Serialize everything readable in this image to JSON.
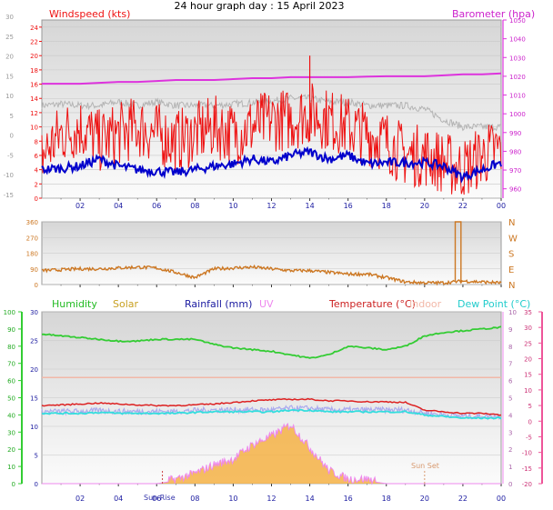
{
  "title": "24 hour graph day : 15 April 2023",
  "x_ticks": [
    "02",
    "04",
    "06",
    "08",
    "10",
    "12",
    "14",
    "16",
    "18",
    "20",
    "22",
    "00"
  ],
  "colors": {
    "wind": "#ee1111",
    "windavg": "#0000cc",
    "baro": "#dd33dd",
    "gust": "#b4b4b4",
    "dir": "#cc7722",
    "humidity": "#33cc33",
    "solar": "#f5b245",
    "rain": "#1a1aa0",
    "uv": "#ee88ee",
    "temp": "#dd2222",
    "indoor": "#f2b8a8",
    "dew": "#33dddd",
    "plot_bg_top": "#d8d8d8",
    "plot_bg_bottom": "#fafafa",
    "grid": "#c8c8c8"
  },
  "chart_data": [
    {
      "type": "line",
      "title": "",
      "legend": {
        "left": "Windspeed (kts)",
        "right": "Barometer (hpa)"
      },
      "left_axis": {
        "ticks": [
          "0",
          "2",
          "4",
          "6",
          "8",
          "10",
          "12",
          "14",
          "16",
          "18",
          "20",
          "22",
          "24"
        ],
        "ylim": [
          0,
          25
        ]
      },
      "left_outer_axis": {
        "ticks": [
          "-15",
          "-10",
          "-5",
          "0",
          "5",
          "10",
          "15",
          "20",
          "25",
          "30"
        ]
      },
      "right_axis": {
        "ticks": [
          "960",
          "970",
          "980",
          "990",
          "1000",
          "1010",
          "1020",
          "1030",
          "1040",
          "1050"
        ],
        "ylim": [
          955,
          1050
        ]
      },
      "x": [
        0,
        1,
        2,
        3,
        4,
        5,
        6,
        7,
        8,
        9,
        10,
        11,
        12,
        13,
        14,
        15,
        16,
        17,
        18,
        19,
        20,
        21,
        22,
        23,
        24
      ],
      "series": [
        {
          "name": "Windspeed (kts)",
          "values": [
            6,
            9,
            10,
            8,
            9,
            10,
            9,
            8,
            9,
            10,
            9,
            10,
            11,
            11,
            12,
            11,
            10,
            9,
            8,
            6,
            6,
            5,
            4,
            6,
            7
          ]
        },
        {
          "name": "Barometer (hpa)",
          "values": [
            1016,
            1016,
            1016,
            1016.5,
            1017,
            1017,
            1017.5,
            1018,
            1018,
            1018,
            1018.5,
            1019,
            1019,
            1019.5,
            1019.5,
            1019.5,
            1019.5,
            1019.8,
            1020,
            1020,
            1020,
            1020.5,
            1021,
            1021,
            1021.5
          ]
        },
        {
          "values": [
            4,
            4.2,
            4.5,
            5.5,
            4.5,
            4,
            3.8,
            3.6,
            4,
            4.5,
            4.8,
            5.5,
            5,
            6,
            6.5,
            5.5,
            6,
            4.8,
            5,
            5,
            5,
            4.5,
            3,
            4,
            5
          ]
        },
        {
          "values": [
            13,
            13.2,
            13,
            13,
            13.5,
            13,
            13.5,
            13,
            13,
            13,
            13.2,
            13.4,
            13.6,
            14,
            14,
            13.5,
            13.5,
            13,
            13,
            13,
            12.5,
            11,
            10,
            10,
            10
          ]
        }
      ],
      "spike": {
        "x": 14,
        "value": 20
      }
    },
    {
      "type": "line",
      "title": "",
      "left_axis": {
        "ticks": [
          "0",
          "90",
          "180",
          "270",
          "360"
        ],
        "ylim": [
          0,
          360
        ]
      },
      "right_labels": [
        "N",
        "W",
        "S",
        "E",
        "N"
      ],
      "x": [
        0,
        1,
        2,
        3,
        4,
        5,
        6,
        7,
        8,
        9,
        10,
        11,
        12,
        13,
        14,
        15,
        16,
        17,
        18,
        19,
        20,
        21,
        22,
        23,
        24
      ],
      "series": [
        {
          "values": [
            80,
            85,
            90,
            90,
            95,
            100,
            95,
            70,
            40,
            90,
            95,
            100,
            90,
            80,
            80,
            70,
            60,
            60,
            40,
            15,
            10,
            10,
            20,
            15,
            10
          ]
        }
      ],
      "spike": {
        "x_start": 21.6,
        "x_end": 21.9,
        "value": 360
      }
    },
    {
      "type": "line",
      "title": "",
      "legend": [
        "Humidity",
        "Solar",
        "Rainfall (mm)",
        "UV",
        "Temperature (°C)",
        "Indoor",
        "Dew Point (°C)"
      ],
      "humidity_axis": {
        "ticks": [
          "0",
          "10",
          "20",
          "30",
          "40",
          "50",
          "60",
          "70",
          "80",
          "90",
          "100"
        ],
        "ylim": [
          0,
          100
        ]
      },
      "left_axis": {
        "ticks": [
          "0",
          "5",
          "10",
          "15",
          "20",
          "25",
          "30"
        ],
        "ylim": [
          0,
          30
        ]
      },
      "uv_axis": {
        "ticks": [
          "0",
          "1",
          "2",
          "3",
          "4",
          "5",
          "6",
          "7",
          "8",
          "9",
          "10"
        ]
      },
      "temp_axis": {
        "ticks": [
          "-20",
          "-15",
          "-10",
          "-5",
          "0",
          "5",
          "10",
          "15",
          "20",
          "25",
          "30",
          "35"
        ],
        "ylim": [
          -20,
          35
        ]
      },
      "x": [
        0,
        1,
        2,
        3,
        4,
        5,
        6,
        7,
        8,
        9,
        10,
        11,
        12,
        13,
        14,
        15,
        16,
        17,
        18,
        19,
        20,
        21,
        22,
        23,
        24
      ],
      "series": [
        {
          "name": "Humidity",
          "values": [
            87,
            86,
            85,
            84,
            83,
            83,
            84,
            84,
            84,
            81,
            79,
            78,
            77,
            75,
            73,
            75,
            80,
            79,
            78,
            80,
            86,
            88,
            89,
            90,
            91
          ]
        },
        {
          "name": "Temperature (°C)",
          "values": [
            5,
            5.2,
            5.5,
            5.8,
            5.5,
            5.2,
            5,
            5,
            5.2,
            5.5,
            6,
            6.5,
            6.8,
            7,
            7,
            6.5,
            6.5,
            6.2,
            6.2,
            6,
            3.5,
            3,
            2.5,
            2.5,
            2
          ]
        },
        {
          "name": "Dew Point (°C)",
          "values": [
            2.5,
            2.5,
            2.5,
            2.8,
            2.5,
            2.5,
            2.5,
            2.5,
            2.8,
            3,
            3,
            3,
            3,
            3.5,
            3.5,
            3,
            3,
            3,
            3,
            3,
            2,
            1.5,
            1,
            1,
            1
          ]
        },
        {
          "name": "Indoor",
          "values": [
            14,
            14,
            14,
            14,
            14,
            14,
            14,
            14,
            14,
            14,
            14,
            14,
            14,
            14,
            14,
            14,
            14,
            14,
            14,
            14,
            14,
            14,
            14,
            14,
            14
          ]
        },
        {
          "name": "Solar",
          "values": [
            0,
            0,
            0,
            0,
            0,
            0,
            0,
            0.5,
            1.5,
            3,
            4,
            6.5,
            8,
            10,
            6,
            2,
            0.5,
            0.5,
            0,
            0,
            0,
            0,
            0,
            0,
            0
          ]
        }
      ],
      "annotations": [
        "Sun Rise",
        "Sun Set"
      ]
    }
  ]
}
